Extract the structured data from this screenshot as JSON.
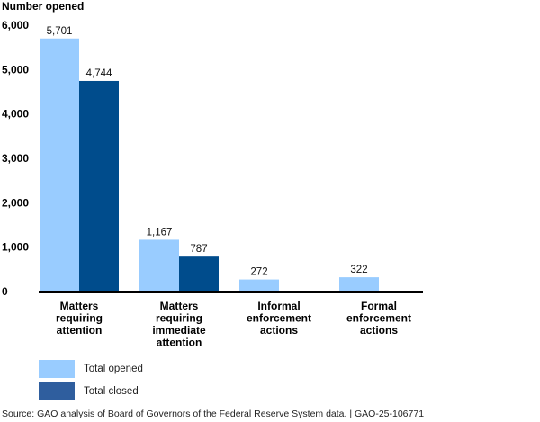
{
  "chart_data": {
    "type": "bar",
    "title": "",
    "ylabel": "Number opened",
    "xlabel": "",
    "ylim": [
      0,
      6000
    ],
    "yticks": [
      0,
      1000,
      2000,
      3000,
      4000,
      5000,
      6000
    ],
    "ytick_labels": [
      "0",
      "1,000",
      "2,000",
      "3,000",
      "4,000",
      "5,000",
      "6,000"
    ],
    "grid": false,
    "categories": [
      [
        "Matters",
        "requiring",
        "attention"
      ],
      [
        "Matters",
        "requiring",
        "immediate",
        "attention"
      ],
      [
        "Informal",
        "enforcement",
        "actions"
      ],
      [
        "Formal",
        "enforcement",
        "actions"
      ]
    ],
    "series": [
      {
        "name": "Total opened",
        "color": "#99CCFF",
        "values": [
          5701,
          1167,
          272,
          322
        ],
        "labels": [
          "5,701",
          "1,167",
          "272",
          "322"
        ]
      },
      {
        "name": "Total closed",
        "color": "#004C8C",
        "values": [
          4744,
          787,
          null,
          null
        ],
        "labels": [
          "4,744",
          "787",
          null,
          null
        ]
      }
    ],
    "legend": {
      "placement": "bottom-left",
      "entries": [
        {
          "label": "Total opened",
          "color": "#99CCFF"
        },
        {
          "label": "Total closed",
          "color": "#2F5E9E"
        }
      ]
    },
    "source": "Source: GAO analysis of Board of Governors of the Federal Reserve System data.  |  GAO-25-106771"
  }
}
